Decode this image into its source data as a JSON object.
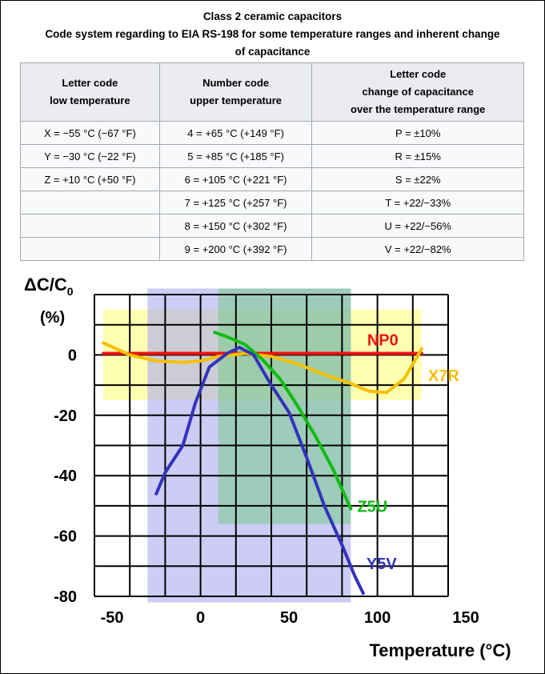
{
  "caption": {
    "line1": "Class 2 ceramic capacitors",
    "line2": "Code system regarding to EIA RS-198 for some temperature ranges and inherent change",
    "line3": "of capacitance"
  },
  "table": {
    "headers": [
      [
        "Letter code",
        "low temperature"
      ],
      [
        "Number code",
        "upper temperature"
      ],
      [
        "Letter code",
        "change of capacitance",
        "over the temperature range"
      ]
    ],
    "rows": [
      [
        "X = −55 °C (−67 °F)",
        "4 = +65 °C (+149 °F)",
        "P = ±10%"
      ],
      [
        "Y = −30 °C (−22 °F)",
        "5 = +85 °C (+185 °F)",
        "R = ±15%"
      ],
      [
        "Z = +10 °C (+50 °F)",
        "6 = +105 °C (+221 °F)",
        "S = ±22%"
      ],
      [
        "",
        "7 = +125 °C (+257 °F)",
        "T = +22/−33%"
      ],
      [
        "",
        "8 = +150 °C (+302 °F)",
        "U = +22/−56%"
      ],
      [
        "",
        "9 = +200 °C (+392 °F)",
        "V = +22/−82%"
      ]
    ]
  },
  "chart_data": {
    "type": "line",
    "ylabel_main": "ΔC/C",
    "ylabel_sub": "0",
    "ylabel_unit": "(%)",
    "xlabel": "Temperature (°C)",
    "xlim": [
      -60,
      140
    ],
    "ylim": [
      -80,
      20
    ],
    "x_ticks": [
      -50,
      0,
      50,
      100,
      150
    ],
    "y_ticks": [
      0,
      -20,
      -40,
      -60,
      -80
    ],
    "grid": true,
    "regions": [
      {
        "name": "X7R",
        "x": [
          -55,
          125
        ],
        "y": [
          -15,
          15
        ],
        "color": "#ffffaa",
        "opacity": 0.9
      },
      {
        "name": "Y5V",
        "x": [
          -30,
          85
        ],
        "y": [
          -82,
          22
        ],
        "color": "#aaaaee",
        "opacity": 0.6
      },
      {
        "name": "Z5U",
        "x": [
          10,
          85
        ],
        "y": [
          -56,
          22
        ],
        "color": "#77cc88",
        "opacity": 0.55
      }
    ],
    "series": [
      {
        "name": "NP0",
        "color": "#ee1111",
        "label_pos": "upper",
        "x": [
          -55,
          125
        ],
        "y": [
          0.5,
          0.5
        ]
      },
      {
        "name": "X7R",
        "color": "#f5c000",
        "label_pos": "right",
        "x": [
          -55,
          -40,
          -25,
          -10,
          0,
          10,
          25,
          40,
          55,
          70,
          85,
          95,
          105,
          115,
          125
        ],
        "y": [
          4,
          0,
          -2,
          -2.5,
          -2,
          -0.5,
          0.5,
          -0.5,
          -3,
          -6.5,
          -9.5,
          -12,
          -12.5,
          -8,
          2
        ]
      },
      {
        "name": "Z5U",
        "color": "#11bb11",
        "label_pos": "right",
        "x": [
          8,
          15,
          25,
          35,
          45,
          55,
          65,
          75,
          85
        ],
        "y": [
          7.5,
          6,
          3.5,
          -1.5,
          -8,
          -17,
          -27,
          -38,
          -51
        ]
      },
      {
        "name": "Y5V",
        "color": "#3333bb",
        "label_pos": "lower",
        "x": [
          -25,
          -20,
          -10,
          -3,
          5,
          15,
          22,
          30,
          40,
          50,
          60,
          70,
          80,
          87,
          92
        ],
        "y": [
          -46,
          -39,
          -30,
          -16,
          -4,
          0.5,
          2.5,
          0,
          -10,
          -19,
          -34,
          -50,
          -63,
          -73,
          -79
        ]
      }
    ]
  }
}
